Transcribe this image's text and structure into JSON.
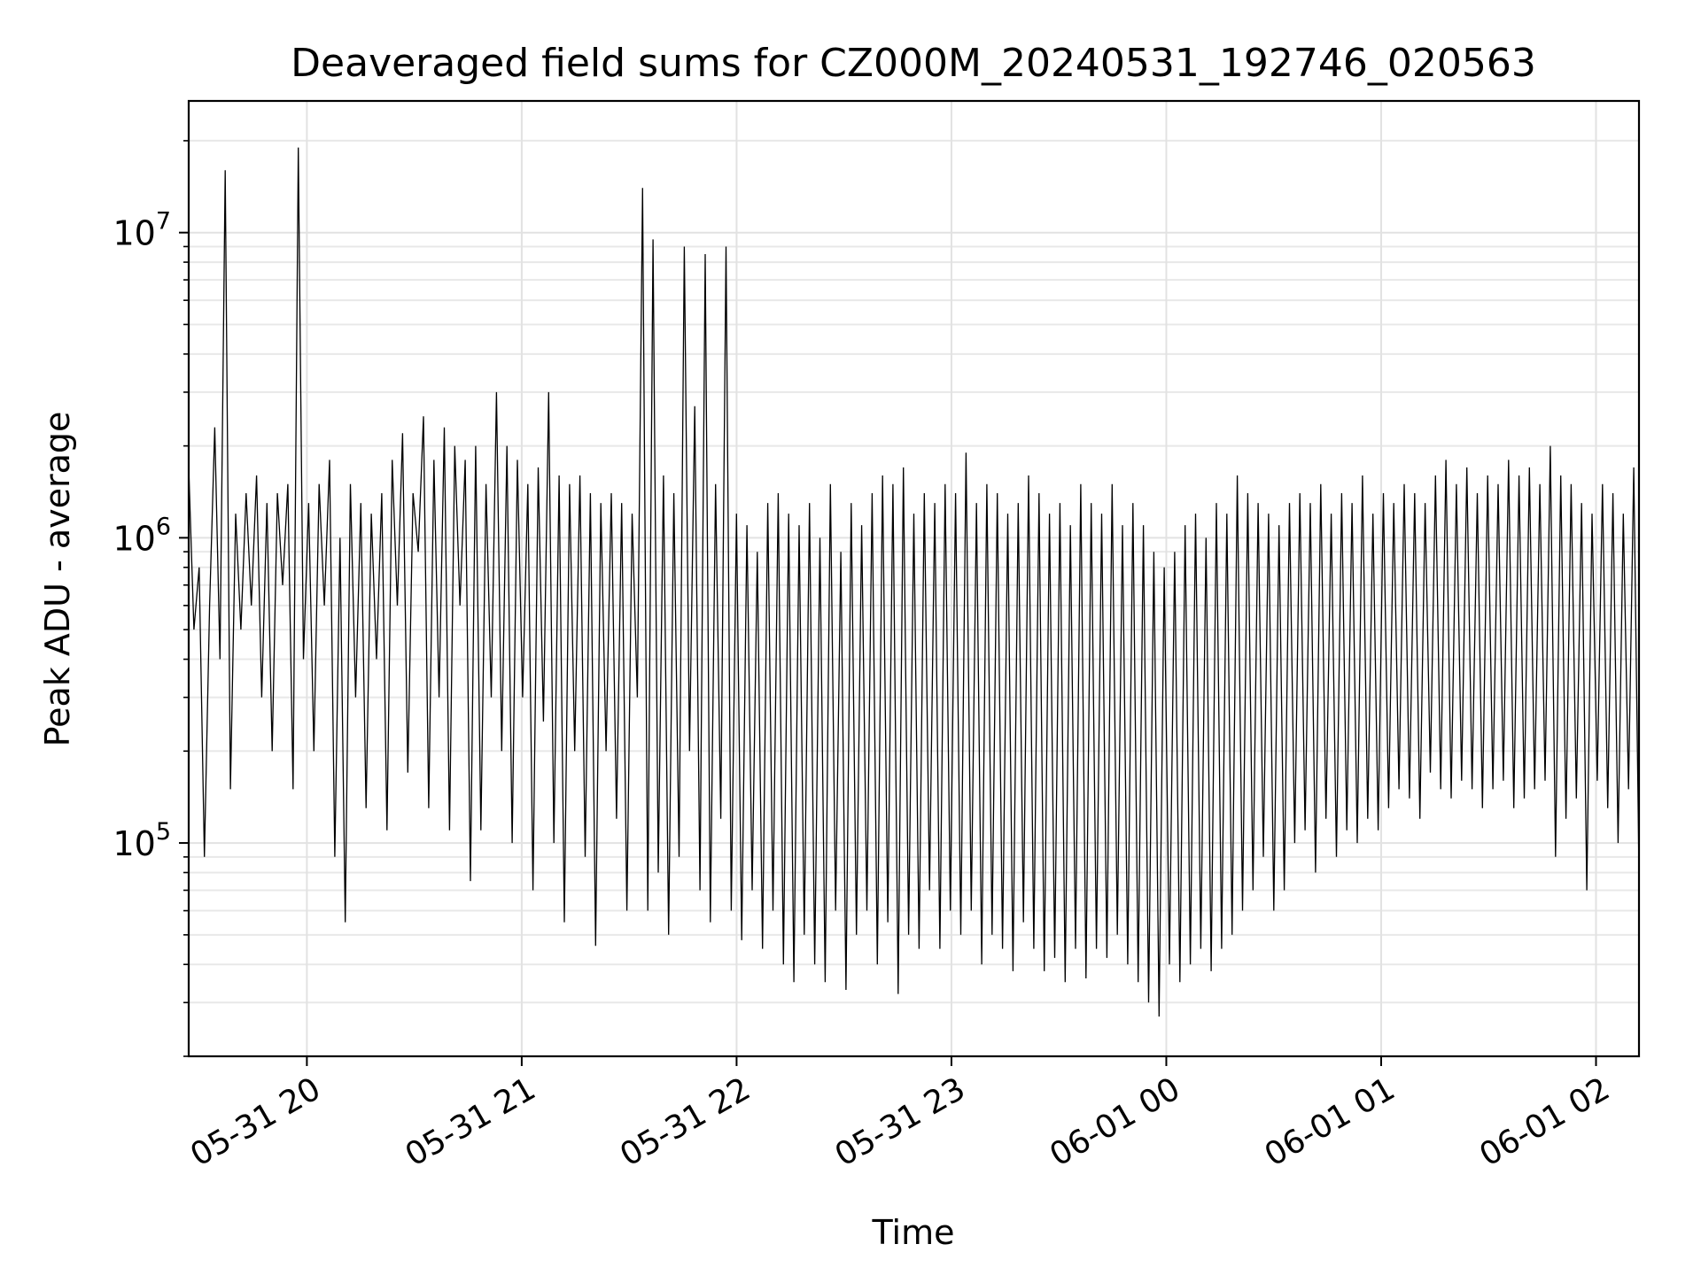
{
  "chart_data": {
    "type": "line",
    "title": "Deaveraged field sums for CZ000M_20240531_192746_020563",
    "xlabel": "Time",
    "ylabel": "Peak ADU - average",
    "yscale": "log",
    "ylim": [
      20000,
      27000000
    ],
    "xlim": [
      "2024-05-31 19:27",
      "2024-06-01 02:12"
    ],
    "grid": true,
    "line_color": "#000000",
    "x_ticks": [
      {
        "t": "2024-05-31 20:00",
        "label": "05-31 20"
      },
      {
        "t": "2024-05-31 21:00",
        "label": "05-31 21"
      },
      {
        "t": "2024-05-31 22:00",
        "label": "05-31 22"
      },
      {
        "t": "2024-05-31 23:00",
        "label": "05-31 23"
      },
      {
        "t": "2024-06-01 00:00",
        "label": "06-01 00"
      },
      {
        "t": "2024-06-01 01:00",
        "label": "06-01 01"
      },
      {
        "t": "2024-06-01 02:00",
        "label": "06-01 02"
      }
    ],
    "y_ticks": [
      {
        "value": 100000,
        "base": "10",
        "exp": "5"
      },
      {
        "value": 1000000,
        "base": "10",
        "exp": "6"
      },
      {
        "value": 10000000,
        "base": "10",
        "exp": "7"
      }
    ],
    "series": [
      {
        "x_start": "2024-05-31 19:27",
        "x_end": "2024-06-01 02:12",
        "values": [
          1700000,
          500000,
          800000,
          90000,
          600000,
          2300000,
          400000,
          16000000,
          150000,
          1200000,
          500000,
          1400000,
          600000,
          1600000,
          300000,
          1300000,
          200000,
          1400000,
          700000,
          1500000,
          150000,
          19000000,
          400000,
          1300000,
          200000,
          1500000,
          600000,
          1800000,
          90000,
          1000000,
          55000,
          1500000,
          300000,
          1300000,
          130000,
          1200000,
          400000,
          1400000,
          110000,
          1800000,
          600000,
          2200000,
          170000,
          1400000,
          900000,
          2500000,
          130000,
          1800000,
          300000,
          2300000,
          110000,
          2000000,
          600000,
          1800000,
          75000,
          2000000,
          110000,
          1500000,
          300000,
          3000000,
          200000,
          2000000,
          100000,
          1800000,
          300000,
          1500000,
          70000,
          1700000,
          250000,
          3000000,
          100000,
          1600000,
          55000,
          1500000,
          200000,
          1600000,
          90000,
          1400000,
          46000,
          1300000,
          200000,
          1400000,
          120000,
          1300000,
          60000,
          1200000,
          300000,
          14000000,
          60000,
          9500000,
          80000,
          1600000,
          50000,
          1400000,
          90000,
          9000000,
          200000,
          2700000,
          70000,
          8500000,
          55000,
          1500000,
          120000,
          9000000,
          60000,
          1200000,
          48000,
          1100000,
          70000,
          900000,
          45000,
          1300000,
          60000,
          1400000,
          40000,
          1200000,
          35000,
          1100000,
          50000,
          1300000,
          40000,
          1000000,
          35000,
          1500000,
          60000,
          900000,
          33000,
          1300000,
          50000,
          1100000,
          60000,
          1400000,
          40000,
          1600000,
          55000,
          1500000,
          32000,
          1700000,
          50000,
          1200000,
          45000,
          1400000,
          70000,
          1300000,
          45000,
          1500000,
          60000,
          1400000,
          50000,
          1900000,
          60000,
          1300000,
          40000,
          1500000,
          50000,
          1400000,
          45000,
          1200000,
          38000,
          1300000,
          55000,
          1600000,
          45000,
          1400000,
          38000,
          1200000,
          42000,
          1300000,
          35000,
          1100000,
          45000,
          1500000,
          36000,
          1300000,
          45000,
          1200000,
          42000,
          1500000,
          50000,
          1100000,
          40000,
          1300000,
          35000,
          1100000,
          30000,
          900000,
          27000,
          800000,
          40000,
          900000,
          35000,
          1100000,
          40000,
          1200000,
          45000,
          1000000,
          38000,
          1300000,
          45000,
          1200000,
          50000,
          1600000,
          60000,
          1400000,
          70000,
          1300000,
          90000,
          1200000,
          60000,
          1100000,
          70000,
          1300000,
          100000,
          1400000,
          110000,
          1300000,
          80000,
          1500000,
          120000,
          1200000,
          90000,
          1400000,
          110000,
          1300000,
          100000,
          1600000,
          120000,
          1200000,
          110000,
          1400000,
          130000,
          1300000,
          150000,
          1500000,
          140000,
          1400000,
          120000,
          1300000,
          170000,
          1600000,
          150000,
          1800000,
          140000,
          1500000,
          160000,
          1700000,
          150000,
          1400000,
          130000,
          1600000,
          150000,
          1500000,
          160000,
          1800000,
          130000,
          1600000,
          140000,
          1700000,
          150000,
          1500000,
          160000,
          2000000,
          90000,
          1600000,
          120000,
          1500000,
          140000,
          1300000,
          70000,
          1200000,
          160000,
          1500000,
          130000,
          1400000,
          100000,
          1200000,
          150000,
          1700000,
          80000
        ]
      }
    ]
  }
}
